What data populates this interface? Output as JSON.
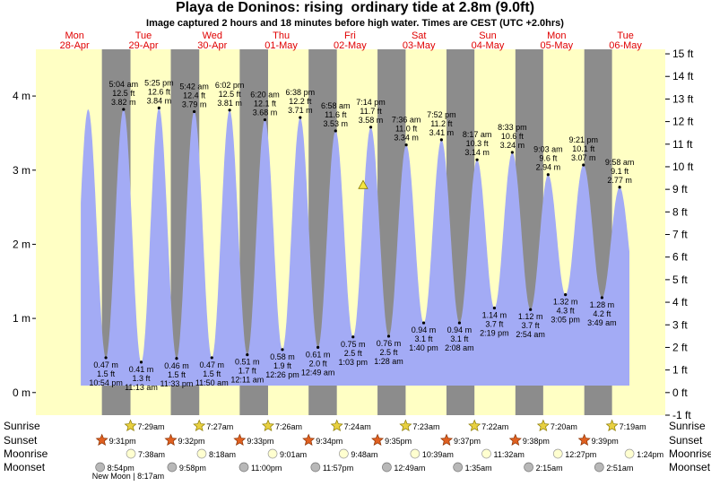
{
  "chart_data": {
    "type": "tide",
    "title": "Playa de Doninos: rising  ordinary tide at 2.8m (9.0ft)",
    "subtitle": "Image captured 2 hours and 18 minutes before high water. Times are CEST (UTC +2.0hrs)",
    "days": [
      {
        "name": "Mon",
        "date": "28-Apr"
      },
      {
        "name": "Tue",
        "date": "29-Apr"
      },
      {
        "name": "Wed",
        "date": "30-Apr"
      },
      {
        "name": "Thu",
        "date": "01-May"
      },
      {
        "name": "Fri",
        "date": "02-May"
      },
      {
        "name": "Sat",
        "date": "03-May"
      },
      {
        "name": "Sun",
        "date": "04-May"
      },
      {
        "name": "Mon",
        "date": "05-May"
      },
      {
        "name": "Tue",
        "date": "06-May"
      }
    ],
    "tides": {
      "times": [
        "10:54 pm",
        "5:04 am",
        "11:13 am",
        "5:25 pm",
        "11:33 pm",
        "5:42 am",
        "11:50 am",
        "6:02 pm",
        "12:11 am",
        "6:20 am",
        "12:26 pm",
        "6:38 pm",
        "12:49 am",
        "6:58 am",
        "1:03 pm",
        "7:14 pm",
        "1:28 am",
        "7:36 am",
        "1:40 pm",
        "7:52 pm",
        "2:08 am",
        "8:17 am",
        "2:19 pm",
        "8:33 pm",
        "2:54 am",
        "9:03 am",
        "3:05 pm",
        "9:21 pm",
        "3:49 am",
        "9:58 am"
      ],
      "values": [
        0.47,
        3.82,
        0.41,
        3.84,
        0.46,
        3.79,
        0.47,
        3.81,
        0.51,
        3.68,
        0.58,
        3.71,
        0.61,
        3.53,
        0.75,
        3.58,
        0.76,
        3.34,
        0.94,
        3.41,
        0.94,
        3.14,
        1.14,
        3.24,
        1.12,
        2.94,
        1.32,
        3.07,
        1.28,
        2.77
      ],
      "value_labels": [
        "0.47 m",
        "3.82 m",
        "0.41 m",
        "3.84 m",
        "0.46 m",
        "3.79 m",
        "0.47 m",
        "3.81 m",
        "0.51 m",
        "3.68 m",
        "0.58 m",
        "3.71 m",
        "0.61 m",
        "3.53 m",
        "0.75 m",
        "3.58 m",
        "0.76 m",
        "3.34 m",
        "0.94 m",
        "3.41 m",
        "0.94 m",
        "3.14 m",
        "1.14 m",
        "3.24 m",
        "1.12 m",
        "2.94 m",
        "1.32 m",
        "3.07 m",
        "1.28 m",
        "2.77 m"
      ],
      "ft_labels": [
        "1.5 ft",
        "12.5 ft",
        "1.3 ft",
        "12.6 ft",
        "1.5 ft",
        "12.4 ft",
        "1.5 ft",
        "12.5 ft",
        "1.7 ft",
        "12.1 ft",
        "1.9 ft",
        "12.2 ft",
        "2.0 ft",
        "11.6 ft",
        "2.5 ft",
        "11.7 ft",
        "2.5 ft",
        "11.0 ft",
        "3.1 ft",
        "11.2 ft",
        "3.1 ft",
        "10.3 ft",
        "3.7 ft",
        "10.6 ft",
        "3.7 ft",
        "9.6 ft",
        "4.3 ft",
        "10.1 ft",
        "4.2 ft",
        "9.1 ft"
      ],
      "color": "#a3abf5"
    },
    "current_height": 2.8,
    "ylim": [
      -0.305,
      4.63
    ],
    "yticks": [
      {
        "value": 0,
        "label": "0 m"
      },
      {
        "value": 1,
        "label": "1 m"
      },
      {
        "value": 2,
        "label": "2 m"
      },
      {
        "value": 3,
        "label": "3 m"
      },
      {
        "value": 4,
        "label": "4 m"
      }
    ],
    "y2lim": [
      -1,
      15.2
    ],
    "y2ticks": [
      {
        "value": -1,
        "label": "-1 ft"
      },
      {
        "value": 0,
        "label": "0 ft"
      },
      {
        "value": 1,
        "label": "1 ft"
      },
      {
        "value": 2,
        "label": "2 ft"
      },
      {
        "value": 3,
        "label": "3 ft"
      },
      {
        "value": 4,
        "label": "4 ft"
      },
      {
        "value": 5,
        "label": "5 ft"
      },
      {
        "value": 6,
        "label": "6 ft"
      },
      {
        "value": 7,
        "label": "7 ft"
      },
      {
        "value": 8,
        "label": "8 ft"
      },
      {
        "value": 9,
        "label": "9 ft"
      },
      {
        "value": 10,
        "label": "10 ft"
      },
      {
        "value": 11,
        "label": "11 ft"
      },
      {
        "value": 12,
        "label": "12 ft"
      },
      {
        "value": 13,
        "label": "13 ft"
      },
      {
        "value": 14,
        "label": "14 ft"
      },
      {
        "value": 15,
        "label": "15 ft"
      }
    ],
    "sunrise": {
      "label": "Sunrise",
      "times": [
        null,
        "7:29am",
        "7:27am",
        "7:26am",
        "7:24am",
        "7:23am",
        "7:22am",
        "7:20am",
        "7:19am"
      ]
    },
    "sunset": {
      "label": "Sunset",
      "times": [
        "9:31pm",
        "9:32pm",
        "9:33pm",
        "9:34pm",
        "9:35pm",
        "9:37pm",
        "9:38pm",
        "9:39pm",
        null
      ]
    },
    "moonrise": {
      "label": "Moonrise",
      "times": [
        null,
        "7:38am",
        "8:18am",
        "9:01am",
        "9:48am",
        "10:39am",
        "11:32am",
        "12:27pm",
        "1:24pm"
      ]
    },
    "moonset": {
      "label": "Moonset",
      "times": [
        "8:54pm",
        "9:58pm",
        "11:00pm",
        "11:57pm",
        null,
        "12:49am",
        "1:35am",
        "2:15am",
        "2:51am"
      ]
    },
    "moon_phase": "New Moon | 8:17am"
  }
}
